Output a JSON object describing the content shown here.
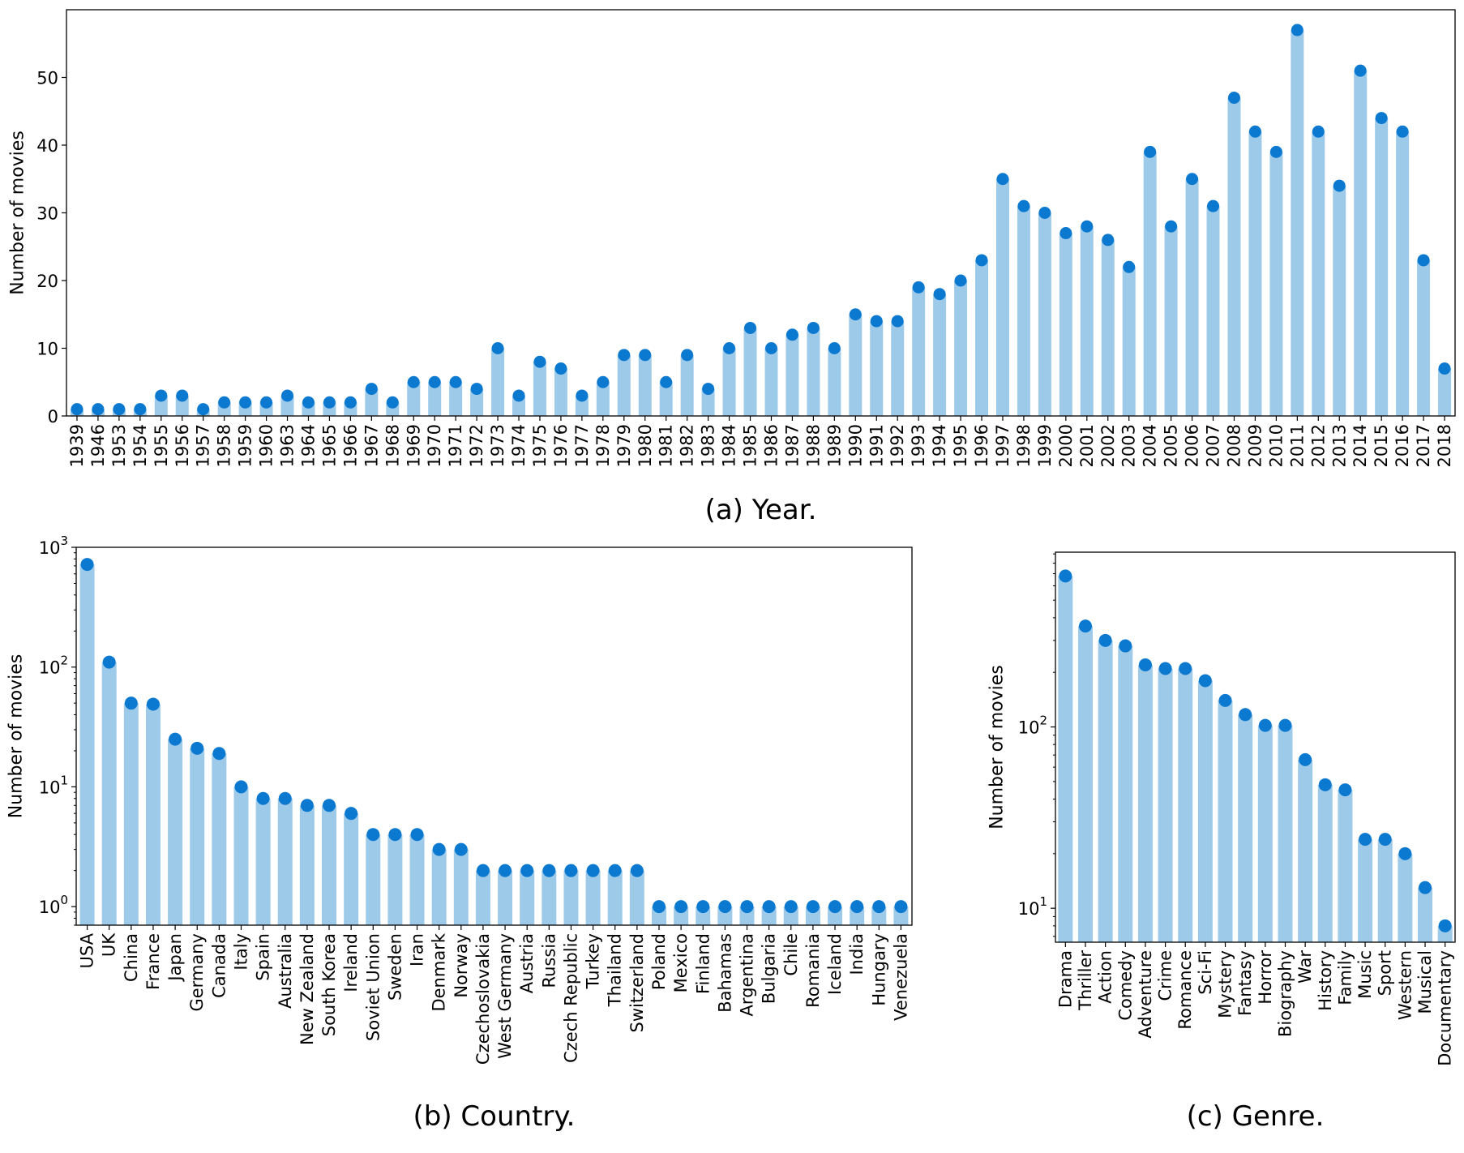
{
  "colors": {
    "bar": "#9ECAE9",
    "dot": "#0B79D0",
    "axis": "#000000"
  },
  "chart_data": [
    {
      "id": "year",
      "type": "bar",
      "caption": "(a) Year.",
      "title": "",
      "xlabel": "",
      "ylabel": "Number of movies",
      "yscale": "linear",
      "ylim": [
        0,
        60
      ],
      "yticks": [
        0,
        10,
        20,
        30,
        40,
        50
      ],
      "grid": false,
      "categories": [
        "1939",
        "1946",
        "1953",
        "1954",
        "1955",
        "1956",
        "1957",
        "1958",
        "1959",
        "1960",
        "1963",
        "1964",
        "1965",
        "1966",
        "1967",
        "1968",
        "1969",
        "1970",
        "1971",
        "1972",
        "1973",
        "1974",
        "1975",
        "1976",
        "1977",
        "1978",
        "1979",
        "1980",
        "1981",
        "1982",
        "1983",
        "1984",
        "1985",
        "1986",
        "1987",
        "1988",
        "1989",
        "1990",
        "1991",
        "1992",
        "1993",
        "1994",
        "1995",
        "1996",
        "1997",
        "1998",
        "1999",
        "2000",
        "2001",
        "2002",
        "2003",
        "2004",
        "2005",
        "2006",
        "2007",
        "2008",
        "2009",
        "2010",
        "2011",
        "2012",
        "2013",
        "2014",
        "2015",
        "2016",
        "2017",
        "2018"
      ],
      "values": [
        1,
        1,
        1,
        1,
        3,
        3,
        1,
        2,
        2,
        2,
        3,
        2,
        2,
        2,
        4,
        2,
        5,
        5,
        5,
        4,
        10,
        3,
        8,
        7,
        3,
        5,
        9,
        9,
        5,
        9,
        4,
        10,
        13,
        10,
        12,
        13,
        10,
        15,
        14,
        14,
        19,
        18,
        20,
        23,
        35,
        31,
        30,
        27,
        28,
        26,
        22,
        39,
        28,
        35,
        31,
        47,
        42,
        39,
        57,
        42,
        34,
        51,
        44,
        42,
        23,
        7
      ]
    },
    {
      "id": "country",
      "type": "bar",
      "caption": "(b) Country.",
      "title": "",
      "xlabel": "",
      "ylabel": "Number of movies",
      "yscale": "log",
      "ylim": [
        0.7,
        1000
      ],
      "yticks": [
        {
          "value": 1,
          "base": "10",
          "exp": "0"
        },
        {
          "value": 10,
          "base": "10",
          "exp": "1"
        },
        {
          "value": 100,
          "base": "10",
          "exp": "2"
        },
        {
          "value": 1000,
          "base": "10",
          "exp": "3"
        }
      ],
      "grid": false,
      "categories": [
        "USA",
        "UK",
        "China",
        "France",
        "Japan",
        "Germany",
        "Canada",
        "Italy",
        "Spain",
        "Australia",
        "New Zealand",
        "South Korea",
        "Ireland",
        "Soviet Union",
        "Sweden",
        "Iran",
        "Denmark",
        "Norway",
        "Czechoslovakia",
        "West Germany",
        "Austria",
        "Russia",
        "Czech Republic",
        "Turkey",
        "Thailand",
        "Switzerland",
        "Poland",
        "Mexico",
        "Finland",
        "Bahamas",
        "Argentina",
        "Bulgaria",
        "Chile",
        "Romania",
        "Iceland",
        "India",
        "Hungary",
        "Venezuela"
      ],
      "values": [
        720,
        110,
        50,
        49,
        25,
        21,
        19,
        10,
        8,
        8,
        7,
        7,
        6,
        4,
        4,
        4,
        3,
        3,
        2,
        2,
        2,
        2,
        2,
        2,
        2,
        2,
        1,
        1,
        1,
        1,
        1,
        1,
        1,
        1,
        1,
        1,
        1,
        1
      ]
    },
    {
      "id": "genre",
      "type": "bar",
      "caption": "(c) Genre.",
      "title": "",
      "xlabel": "",
      "ylabel": "Number of movies",
      "yscale": "log",
      "ylim": [
        6.5,
        920
      ],
      "yticks": [
        {
          "value": 10,
          "base": "10",
          "exp": "1"
        },
        {
          "value": 100,
          "base": "10",
          "exp": "2"
        }
      ],
      "grid": false,
      "categories": [
        "Drama",
        "Thriller",
        "Action",
        "Comedy",
        "Adventure",
        "Crime",
        "Romance",
        "Sci-Fi",
        "Mystery",
        "Fantasy",
        "Horror",
        "Biography",
        "War",
        "History",
        "Family",
        "Music",
        "Sport",
        "Western",
        "Musical",
        "Documentary"
      ],
      "values": [
        680,
        360,
        300,
        280,
        220,
        210,
        210,
        180,
        140,
        117,
        102,
        102,
        66,
        48,
        45,
        24,
        24,
        20,
        13,
        8
      ]
    }
  ]
}
